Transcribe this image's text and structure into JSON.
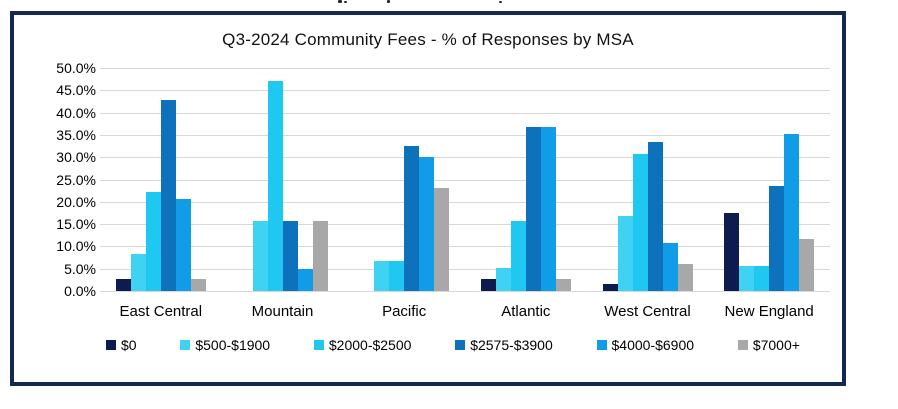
{
  "chart_data": {
    "type": "bar",
    "title": "Q3-2024 Community Fees - % of Responses by MSA",
    "categories": [
      "East Central",
      "Mountain",
      "Pacific",
      "Atlantic",
      "West Central",
      "New England"
    ],
    "series": [
      {
        "name": "$0",
        "color": "#0C1C4E",
        "values": [
          2.6,
          0.0,
          0.0,
          2.6,
          1.6,
          17.6
        ]
      },
      {
        "name": "$500-$1900",
        "color": "#3FD2F2",
        "values": [
          8.2,
          15.7,
          6.8,
          5.2,
          16.8,
          5.7
        ]
      },
      {
        "name": "$2000-$2500",
        "color": "#1FC8F0",
        "values": [
          22.3,
          47.2,
          6.8,
          15.8,
          30.7,
          5.7
        ]
      },
      {
        "name": "$2575-$3900",
        "color": "#0E71BC",
        "values": [
          42.9,
          15.7,
          32.5,
          36.7,
          33.5,
          23.5
        ]
      },
      {
        "name": "$4000-$6900",
        "color": "#119CE8",
        "values": [
          20.6,
          5.0,
          30.0,
          36.7,
          10.7,
          35.2
        ]
      },
      {
        "name": "$7000+",
        "color": "#A8A8A8",
        "values": [
          2.6,
          15.7,
          23.0,
          2.6,
          6.1,
          11.7
        ]
      }
    ],
    "ylim": [
      0,
      50
    ],
    "ytick_step": 5,
    "ytick_labels": [
      "50.0%",
      "45.0%",
      "40.0%",
      "35.0%",
      "30.0%",
      "25.0%",
      "20.0%",
      "15.0%",
      "10.0%",
      "5.0%",
      "0.0%"
    ],
    "grid": true,
    "legend_position": "bottom",
    "frame_color": "#142850",
    "gridline_color": "#D8D8D8"
  }
}
